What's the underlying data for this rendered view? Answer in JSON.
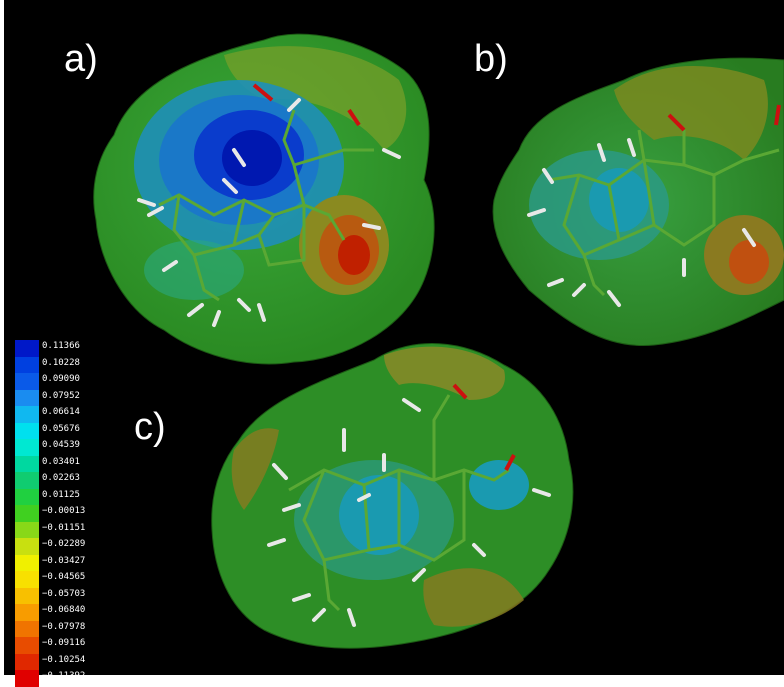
{
  "panels": {
    "a": {
      "label": "a)"
    },
    "b": {
      "label": "b)"
    },
    "c": {
      "label": "c)"
    }
  },
  "colorbar": {
    "entries": [
      {
        "value": "0.11366",
        "color": "#0018c8"
      },
      {
        "value": "0.10228",
        "color": "#0040e0"
      },
      {
        "value": "0.09090",
        "color": "#0a5ae8"
      },
      {
        "value": "0.07952",
        "color": "#1a8cf0"
      },
      {
        "value": "0.06614",
        "color": "#10b8f0"
      },
      {
        "value": "0.05676",
        "color": "#00e0ee"
      },
      {
        "value": "0.04539",
        "color": "#00e8d2"
      },
      {
        "value": "0.03401",
        "color": "#00d8a0"
      },
      {
        "value": "0.02263",
        "color": "#10cc70"
      },
      {
        "value": "0.01125",
        "color": "#20d040"
      },
      {
        "value": "−0.00013",
        "color": "#40d020"
      },
      {
        "value": "−0.01151",
        "color": "#88d818"
      },
      {
        "value": "−0.02289",
        "color": "#c8e010"
      },
      {
        "value": "−0.03427",
        "color": "#f0f000"
      },
      {
        "value": "−0.04565",
        "color": "#f8e000"
      },
      {
        "value": "−0.05703",
        "color": "#f8c000"
      },
      {
        "value": "−0.06840",
        "color": "#f89c00"
      },
      {
        "value": "−0.07978",
        "color": "#f07400"
      },
      {
        "value": "−0.09116",
        "color": "#e84c00"
      },
      {
        "value": "−0.10254",
        "color": "#e02800"
      },
      {
        "value": "−0.11392",
        "color": "#e00000"
      }
    ]
  }
}
